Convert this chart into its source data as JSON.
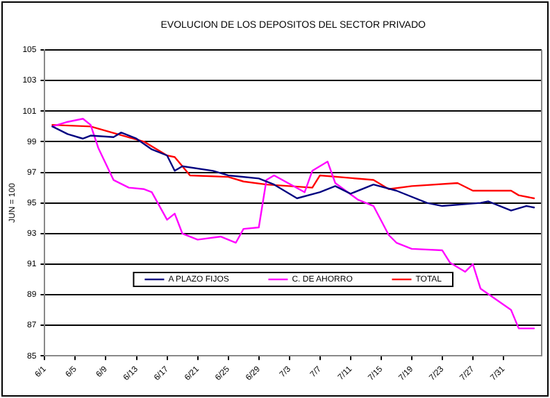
{
  "chart_data": {
    "type": "line",
    "title": "EVOLUCION DE LOS DEPOSITOS DEL SECTOR PRIVADO",
    "ylabel": "JUN = 100",
    "xlim": [
      "--06-01",
      "--08-05"
    ],
    "xticks": [
      {
        "value": "--06-01",
        "label": "6/1"
      },
      {
        "value": "--06-05",
        "label": "6/5"
      },
      {
        "value": "--06-09",
        "label": "6/9"
      },
      {
        "value": "--06-13",
        "label": "6/13"
      },
      {
        "value": "--06-17",
        "label": "6/17"
      },
      {
        "value": "--06-21",
        "label": "6/21"
      },
      {
        "value": "--06-25",
        "label": "6/25"
      },
      {
        "value": "--06-29",
        "label": "6/29"
      },
      {
        "value": "--07-03",
        "label": "7/3"
      },
      {
        "value": "--07-07",
        "label": "7/7"
      },
      {
        "value": "--07-11",
        "label": "7/11"
      },
      {
        "value": "--07-15",
        "label": "7/15"
      },
      {
        "value": "--07-19",
        "label": "7/19"
      },
      {
        "value": "--07-23",
        "label": "7/23"
      },
      {
        "value": "--07-27",
        "label": "7/27"
      },
      {
        "value": "--07-31",
        "label": "7/31"
      }
    ],
    "ylim": [
      85,
      105
    ],
    "yticks": [
      85,
      87,
      89,
      91,
      93,
      95,
      97,
      99,
      101,
      103,
      105
    ],
    "grid": "y",
    "legend": "bottom",
    "marker": "none",
    "line_style": "solid",
    "series": [
      {
        "name": "A PLAZO FIJOS",
        "color": "#000080",
        "x": [
          "--06-02",
          "--06-04",
          "--06-06",
          "--06-07",
          "--06-10",
          "--06-11",
          "--06-13",
          "--06-15",
          "--06-17",
          "--06-18",
          "--06-19",
          "--06-23",
          "--06-25",
          "--06-29",
          "--07-01",
          "--07-04",
          "--07-07",
          "--07-09",
          "--07-11",
          "--07-14",
          "--07-17",
          "--07-21",
          "--07-23",
          "--07-28",
          "--07-29",
          "--08-01",
          "--08-03",
          "--08-04"
        ],
        "values": [
          100.0,
          99.5,
          99.2,
          99.4,
          99.3,
          99.6,
          99.2,
          98.5,
          98.1,
          97.1,
          97.4,
          97.1,
          96.8,
          96.6,
          96.2,
          95.3,
          95.7,
          96.1,
          95.6,
          96.2,
          95.8,
          95.0,
          94.8,
          95.0,
          95.1,
          94.5,
          94.8,
          94.7
        ]
      },
      {
        "name": "C. DE AHORRO",
        "color": "#ff00ff",
        "x": [
          "--06-02",
          "--06-04",
          "--06-06",
          "--06-07",
          "--06-08",
          "--06-10",
          "--06-12",
          "--06-14",
          "--06-15",
          "--06-17",
          "--06-18",
          "--06-19",
          "--06-21",
          "--06-24",
          "--06-26",
          "--06-27",
          "--06-29",
          "--06-30",
          "--07-01",
          "--07-05",
          "--07-06",
          "--07-08",
          "--07-09",
          "--07-12",
          "--07-14",
          "--07-16",
          "--07-17",
          "--07-19",
          "--07-23",
          "--07-24",
          "--07-26",
          "--07-27",
          "--07-28",
          "--08-01",
          "--08-02",
          "--08-04"
        ],
        "values": [
          100.0,
          100.3,
          100.5,
          100.1,
          98.6,
          96.5,
          96.0,
          95.9,
          95.7,
          93.9,
          94.3,
          93.0,
          92.6,
          92.8,
          92.4,
          93.3,
          93.4,
          96.5,
          96.8,
          95.7,
          97.1,
          97.7,
          96.3,
          95.2,
          94.8,
          92.9,
          92.4,
          92.0,
          91.9,
          91.1,
          90.5,
          91.0,
          89.4,
          88.0,
          86.8,
          86.8
        ]
      },
      {
        "name": "TOTAL",
        "color": "#ff0000",
        "x": [
          "--06-02",
          "--06-07",
          "--06-14",
          "--06-17",
          "--06-18",
          "--06-20",
          "--06-25",
          "--06-27",
          "--06-30",
          "--07-06",
          "--07-07",
          "--07-14",
          "--07-16",
          "--07-19",
          "--07-25",
          "--07-27",
          "--08-01",
          "--08-02",
          "--08-04"
        ],
        "values": [
          100.1,
          100.0,
          99.0,
          98.1,
          98.0,
          96.8,
          96.7,
          96.4,
          96.2,
          96.0,
          96.8,
          96.5,
          95.9,
          96.1,
          96.3,
          95.8,
          95.8,
          95.5,
          95.3
        ]
      }
    ]
  }
}
